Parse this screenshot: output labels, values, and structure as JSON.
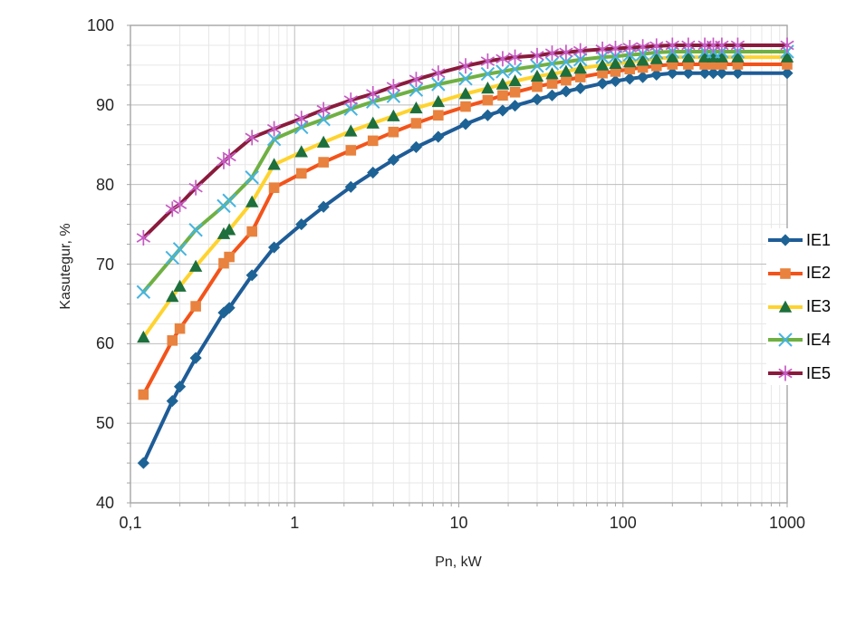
{
  "chart_data": {
    "type": "line",
    "x_scale": "log",
    "xlabel": "Pn, kW",
    "ylabel": "Kasutegur, %",
    "ylim": [
      40,
      100
    ],
    "y_major_step": 10,
    "y_minor_step": 2.5,
    "grid": true,
    "legend_position": "right",
    "x_ticks": [
      0.1,
      1,
      10,
      100,
      1000
    ],
    "x_tick_labels": [
      "0,1",
      "1",
      "10",
      "100",
      "1000"
    ],
    "y_tick_values": [
      40,
      50,
      60,
      70,
      80,
      90,
      100
    ],
    "y_tick_labels": [
      "40",
      "50",
      "60",
      "70",
      "80",
      "90",
      "100"
    ],
    "x": [
      0.12,
      0.18,
      0.2,
      0.25,
      0.37,
      0.4,
      0.55,
      0.75,
      1.1,
      1.5,
      2.2,
      3,
      4,
      5.5,
      7.5,
      11,
      15,
      18.5,
      22,
      30,
      37,
      45,
      55,
      75,
      90,
      110,
      132,
      160,
      200,
      250,
      315,
      355,
      400,
      500,
      1000
    ],
    "series": [
      {
        "name": "IE1",
        "marker": "diamond",
        "line_color": "#1e5c97",
        "marker_color": "#1e6395",
        "values": [
          45.0,
          52.8,
          54.6,
          58.2,
          63.9,
          64.5,
          68.6,
          72.1,
          75.0,
          77.2,
          79.7,
          81.5,
          83.1,
          84.7,
          86.0,
          87.6,
          88.7,
          89.3,
          89.9,
          90.7,
          91.2,
          91.7,
          92.1,
          92.7,
          93.0,
          93.3,
          93.5,
          93.8,
          94.0,
          94.0,
          94.0,
          94.0,
          94.0,
          94.0,
          94.0
        ]
      },
      {
        "name": "IE2",
        "marker": "square",
        "line_color": "#f3531a",
        "marker_color": "#e8823e",
        "values": [
          53.6,
          60.4,
          61.9,
          64.7,
          70.1,
          70.9,
          74.1,
          79.6,
          81.4,
          82.8,
          84.3,
          85.5,
          86.6,
          87.7,
          88.7,
          89.8,
          90.6,
          91.2,
          91.6,
          92.3,
          92.7,
          93.1,
          93.5,
          94.0,
          94.2,
          94.5,
          94.7,
          94.9,
          95.1,
          95.1,
          95.1,
          95.1,
          95.1,
          95.1,
          95.1
        ]
      },
      {
        "name": "IE3",
        "marker": "triangle",
        "line_color": "#ffd32f",
        "marker_color": "#1d6f3c",
        "values": [
          60.8,
          65.9,
          67.2,
          69.7,
          73.8,
          74.3,
          77.8,
          82.5,
          84.1,
          85.3,
          86.7,
          87.7,
          88.6,
          89.6,
          90.4,
          91.4,
          92.1,
          92.6,
          93.0,
          93.6,
          93.9,
          94.2,
          94.6,
          95.0,
          95.2,
          95.4,
          95.6,
          95.8,
          96.0,
          96.0,
          96.0,
          96.0,
          96.0,
          96.0,
          96.0
        ]
      },
      {
        "name": "IE4",
        "marker": "x",
        "line_color": "#6fb043",
        "marker_color": "#45b4e3",
        "values": [
          66.5,
          70.8,
          71.9,
          74.3,
          77.3,
          78.0,
          80.9,
          85.7,
          87.2,
          88.2,
          89.5,
          90.4,
          91.1,
          91.9,
          92.6,
          93.3,
          93.9,
          94.2,
          94.5,
          94.9,
          95.2,
          95.4,
          95.7,
          96.0,
          96.1,
          96.3,
          96.4,
          96.6,
          96.7,
          96.7,
          96.7,
          96.7,
          96.7,
          96.7,
          96.7
        ]
      },
      {
        "name": "IE5",
        "marker": "asterisk",
        "line_color": "#8a1b3c",
        "marker_color": "#c65bc4",
        "values": [
          73.3,
          76.9,
          77.5,
          79.6,
          82.9,
          83.5,
          85.9,
          87.0,
          88.3,
          89.4,
          90.6,
          91.4,
          92.3,
          93.2,
          94.0,
          94.9,
          95.5,
          95.8,
          96.0,
          96.2,
          96.5,
          96.6,
          96.8,
          97.0,
          97.1,
          97.2,
          97.3,
          97.4,
          97.5,
          97.5,
          97.5,
          97.5,
          97.5,
          97.5,
          97.5
        ]
      }
    ]
  },
  "style_colors": {
    "grid_minor": "#e7e7e7",
    "grid_major": "#bdbdbd",
    "plot_border": "#a6a6a6",
    "tick": "#a6a6a6",
    "text": "#262626"
  }
}
